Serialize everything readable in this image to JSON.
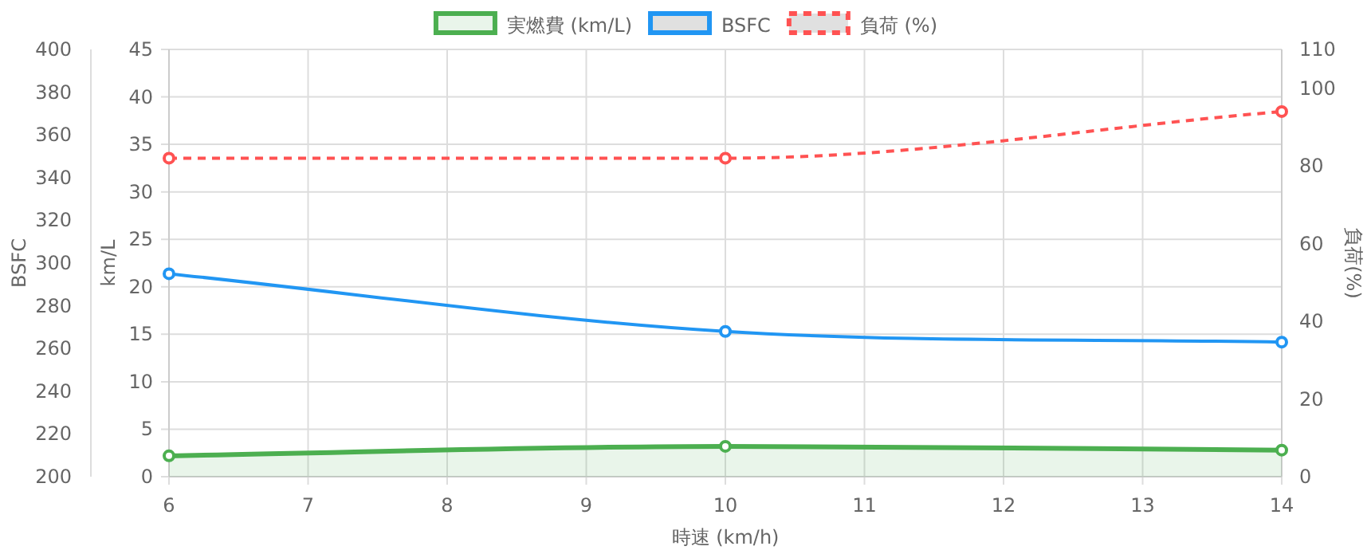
{
  "chart_data": {
    "type": "line",
    "xlabel": "時速 (km/h)",
    "ylabel": "km/L",
    "y2label": "BSFC",
    "y3label": "負荷(%)",
    "x": [
      6,
      10,
      14
    ],
    "xlim": [
      6,
      14
    ],
    "xticks": [
      6,
      7,
      8,
      9,
      10,
      11,
      12,
      13,
      14
    ],
    "ylim": [
      0,
      45
    ],
    "yticks": [
      0,
      5,
      10,
      15,
      20,
      25,
      30,
      35,
      40,
      45
    ],
    "y2lim": [
      200,
      400
    ],
    "y2ticks": [
      200,
      220,
      240,
      260,
      280,
      300,
      320,
      340,
      360,
      380,
      400
    ],
    "y3lim": [
      0,
      110
    ],
    "y3ticks": [
      0,
      20,
      40,
      60,
      80,
      100,
      110
    ],
    "grid": true,
    "legend": "top",
    "marker": "circle",
    "line_style": "solid",
    "series": [
      {
        "name": "実燃費 (km/L)",
        "type": "area",
        "color": "#4caf50",
        "values": [
          2.2,
          3.2,
          2.8
        ]
      },
      {
        "name": "BSFC",
        "color": "#2196f3",
        "axis": "y2",
        "values": [
          295,
          268,
          263
        ]
      },
      {
        "name": "負荷 (%)",
        "color": "#ff5252",
        "axis": "y3",
        "line_style": "dashed",
        "values": [
          82,
          82,
          94
        ]
      }
    ]
  }
}
